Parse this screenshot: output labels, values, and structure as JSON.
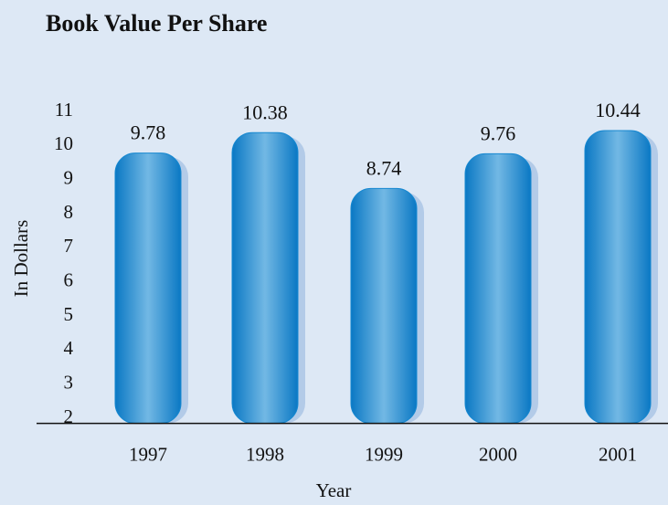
{
  "chart_data": {
    "type": "bar",
    "title": "Book Value Per Share",
    "x_label": "Year",
    "y_label": "In Dollars",
    "categories": [
      "1997",
      "1998",
      "1999",
      "2000",
      "2001"
    ],
    "values": [
      9.78,
      10.38,
      8.74,
      9.76,
      10.44
    ],
    "color": "#1587d0",
    "ylim": [
      1.85,
      11.5
    ],
    "yticks": [
      2,
      3,
      4,
      5,
      6,
      7,
      8,
      9,
      10,
      11
    ],
    "grid": false
  }
}
